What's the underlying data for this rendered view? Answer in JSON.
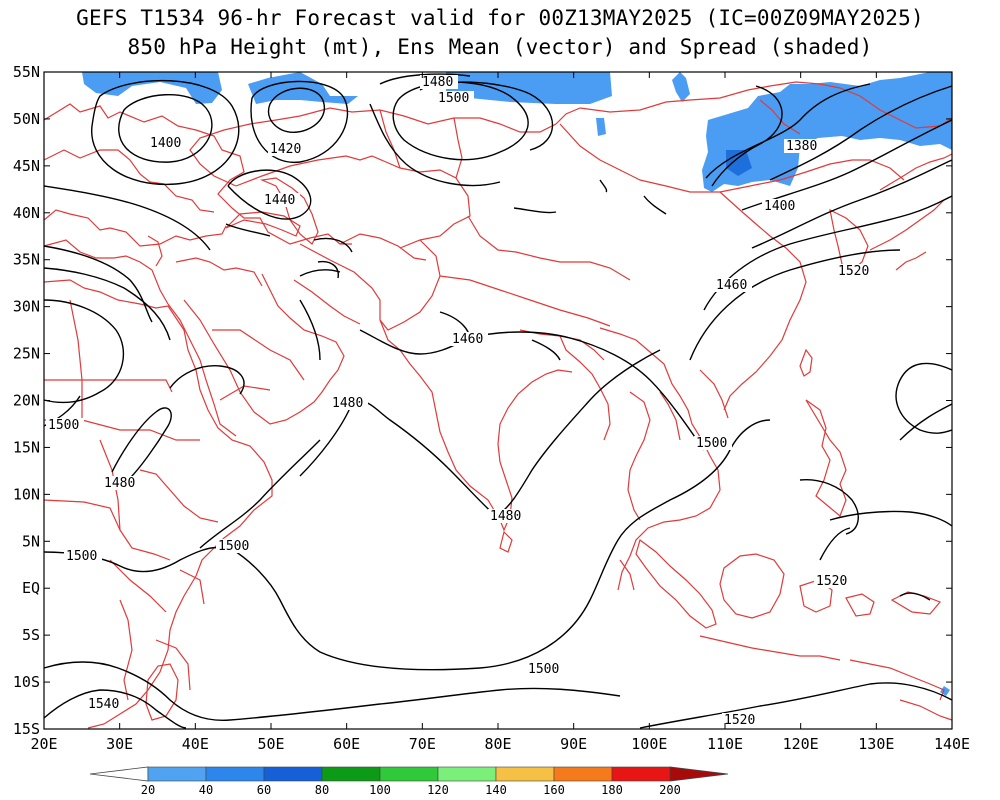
{
  "title": {
    "line1": "GEFS T1534 96-hr Forecast valid for 00Z13MAY2025 (IC=00Z09MAY2025)",
    "line2": "850 hPa Height (mt), Ens Mean (vector) and Spread (shaded)"
  },
  "axes": {
    "lon_ticks": [
      "20E",
      "30E",
      "40E",
      "50E",
      "60E",
      "70E",
      "80E",
      "90E",
      "100E",
      "110E",
      "120E",
      "130E",
      "140E"
    ],
    "lat_ticks": [
      "55N",
      "50N",
      "45N",
      "40N",
      "35N",
      "30N",
      "25N",
      "20N",
      "15N",
      "10N",
      "5N",
      "EQ",
      "5S",
      "10S",
      "15S"
    ]
  },
  "contour_labels": [
    {
      "id": "c1400a",
      "text": "1400"
    },
    {
      "id": "c1420",
      "text": "1420"
    },
    {
      "id": "c1440",
      "text": "1440"
    },
    {
      "id": "c1480a",
      "text": "1480"
    },
    {
      "id": "c1500a",
      "text": "1500"
    },
    {
      "id": "c1380",
      "text": "1380"
    },
    {
      "id": "c1400b",
      "text": "1400"
    },
    {
      "id": "c1520a",
      "text": "1520"
    },
    {
      "id": "c1460a",
      "text": "1460"
    },
    {
      "id": "c1460b",
      "text": "1460"
    },
    {
      "id": "c1480b",
      "text": "1480"
    },
    {
      "id": "c1500b",
      "text": "1500"
    },
    {
      "id": "c1480c",
      "text": "1480"
    },
    {
      "id": "c1500c",
      "text": "1500"
    },
    {
      "id": "c1480d",
      "text": "1480"
    },
    {
      "id": "c1500d",
      "text": "1500"
    },
    {
      "id": "c1500e",
      "text": "1500"
    },
    {
      "id": "c1520b",
      "text": "1520"
    },
    {
      "id": "c1500f",
      "text": "1500"
    },
    {
      "id": "c1540",
      "text": "1540"
    },
    {
      "id": "c1520c",
      "text": "1520"
    }
  ],
  "colorbar": {
    "labels": [
      "20",
      "40",
      "60",
      "80",
      "100",
      "120",
      "140",
      "160",
      "180",
      "200"
    ],
    "colors": [
      "#4fa3f0",
      "#2d86ec",
      "#1560d6",
      "#0c9b17",
      "#30c93a",
      "#7af07a",
      "#f5c043",
      "#f57a1b",
      "#e81515",
      "#a80a0a"
    ]
  },
  "colors": {
    "spread_shade": "#4a9df2",
    "coastline": "#e03a3a",
    "contour": "#000000"
  }
}
